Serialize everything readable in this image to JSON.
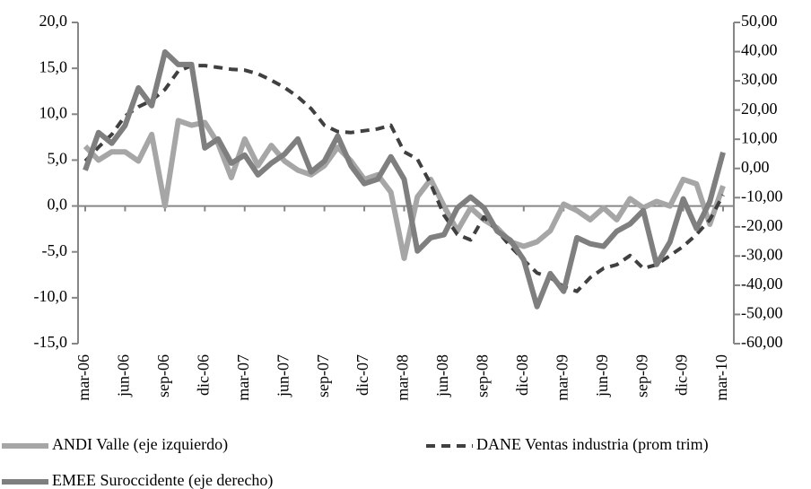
{
  "chart_data": {
    "type": "line",
    "categories": [
      "mar-06",
      null,
      null,
      "jun-06",
      null,
      null,
      "sep-06",
      null,
      null,
      "dic-06",
      null,
      null,
      "mar-07",
      null,
      null,
      "jun-07",
      null,
      null,
      "sep-07",
      null,
      null,
      "dic-07",
      null,
      null,
      "mar-08",
      null,
      null,
      "jun-08",
      null,
      null,
      "sep-08",
      null,
      null,
      "dic-08",
      null,
      null,
      "mar-09",
      null,
      null,
      "jun-09",
      null,
      null,
      "sep-09",
      null,
      null,
      "dic-09",
      null,
      null,
      "mar-10"
    ],
    "series": [
      {
        "name": "ANDI Valle  (eje izquierdo)",
        "color": "#a6a6a6",
        "dashed": false,
        "values": [
          6.5,
          5,
          5.9,
          5.9,
          4.9,
          7.8,
          0,
          9.3,
          8.8,
          9.1,
          6.8,
          3.1,
          7.3,
          4.4,
          6.6,
          4.9,
          3.9,
          3.4,
          4.4,
          6.4,
          4.9,
          2.9,
          3.4,
          1.5,
          -5.7,
          1,
          2.9,
          0,
          -2.7,
          -0.2,
          -1.5,
          -2.4,
          -3.9,
          -4.4,
          -3.9,
          -2.7,
          0.2,
          -0.5,
          -1.5,
          -0.2,
          -1.5,
          0.8,
          -0.2,
          0.5,
          0,
          2.9,
          2.4,
          -2,
          2.2
        ]
      },
      {
        "name": "DANE Ventas industria (prom trim)",
        "color": "#404040",
        "dashed": true,
        "values": [
          4.9,
          6.4,
          7.8,
          9.8,
          10.8,
          11.5,
          12.7,
          14.7,
          15.3,
          15.3,
          15.1,
          14.9,
          14.8,
          14.4,
          13.7,
          12.9,
          11.9,
          10.6,
          8.8,
          8.1,
          8.0,
          8.2,
          8.4,
          8.8,
          5.9,
          5.1,
          2.4,
          -1,
          -3.1,
          -3.7,
          -1.2,
          -2.7,
          -4.4,
          -5.9,
          -7.3,
          -7.8,
          -8.8,
          -9.3,
          -7.8,
          -6.8,
          -6.4,
          -5.4,
          -6.8,
          -6.4,
          -5.4,
          -4.4,
          -3.1,
          -1.5,
          1.2
        ]
      },
      {
        "name": "EMEE Suroccidente (eje derecho)",
        "color": "#7f7f7f",
        "dashed": false,
        "axis": "y2",
        "values": [
          -0.6,
          12.3,
          8.6,
          14.7,
          27.6,
          21.5,
          39.9,
          35.6,
          35.6,
          7,
          10.1,
          1.8,
          4.6,
          -2.2,
          1.8,
          4.9,
          10.1,
          -1.2,
          2.5,
          11.1,
          0.9,
          -5.2,
          -3.7,
          4.0,
          -3.7,
          -28.3,
          -23.7,
          -22.7,
          -13.5,
          -9.8,
          -13.5,
          -21.5,
          -24.6,
          -31.3,
          -47.3,
          -36,
          -42.1,
          -23.7,
          -25.8,
          -26.7,
          -21.5,
          -19,
          -14.4,
          -32.9,
          -25.2,
          -10.4,
          -20.6,
          -11.4,
          5.5
        ]
      }
    ],
    "ylim": [
      -15,
      20
    ],
    "yticks": [
      {
        "value": -15,
        "label": "-15,0"
      },
      {
        "value": -10,
        "label": "-10,0"
      },
      {
        "value": -5,
        "label": "-5,0"
      },
      {
        "value": 0,
        "label": "0,0"
      },
      {
        "value": 5,
        "label": "5,0"
      },
      {
        "value": 10,
        "label": "10,0"
      },
      {
        "value": 15,
        "label": "15,0"
      },
      {
        "value": 20,
        "label": "20,0"
      }
    ],
    "y2lim": [
      -60,
      50
    ],
    "y2ticks": [
      {
        "value": -60,
        "label": "-60,00"
      },
      {
        "value": -50,
        "label": "-50,00"
      },
      {
        "value": -40,
        "label": "-40,00"
      },
      {
        "value": -30,
        "label": "-30,00"
      },
      {
        "value": -20,
        "label": "-20,00"
      },
      {
        "value": -10,
        "label": "-10,00"
      },
      {
        "value": 0,
        "label": "0,00"
      },
      {
        "value": 10,
        "label": "10,00"
      },
      {
        "value": 20,
        "label": "20,00"
      },
      {
        "value": 30,
        "label": "30,00"
      },
      {
        "value": 40,
        "label": "40,00"
      },
      {
        "value": 50,
        "label": "50,00"
      }
    ],
    "grid": false,
    "legend": "bottom"
  }
}
